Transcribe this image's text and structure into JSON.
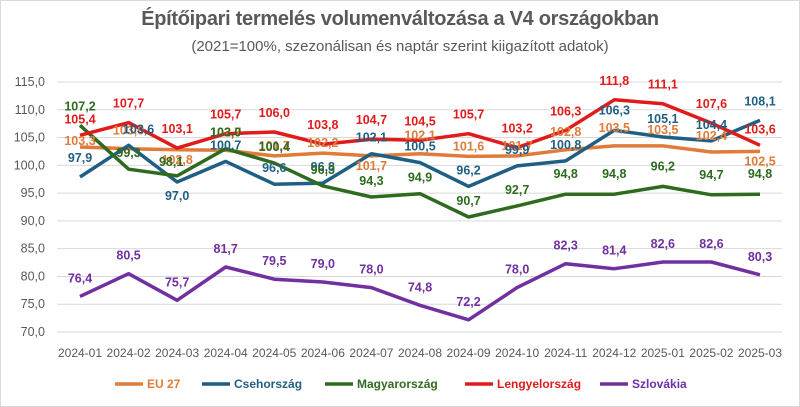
{
  "chart_data": {
    "type": "line",
    "title": "Építőipari termelés volumenváltozása a V4 országokban",
    "subtitle": "(2021=100%, szezonálisan és naptár szerint kiigazított adatok)",
    "xlabel": "",
    "ylabel": "",
    "ylim": [
      70,
      115
    ],
    "yticks": [
      70,
      75,
      80,
      85,
      90,
      95,
      100,
      105,
      110,
      115
    ],
    "ytick_labels": [
      "70,0",
      "75,0",
      "80,0",
      "85,0",
      "90,0",
      "95,0",
      "100,0",
      "105,0",
      "110,0",
      "115,0"
    ],
    "grid": true,
    "legend_position": "bottom",
    "categories": [
      "2024-01",
      "2024-02",
      "2024-03",
      "2024-04",
      "2024-05",
      "2024-06",
      "2024-07",
      "2024-08",
      "2024-09",
      "2024-10",
      "2024-11",
      "2024-12",
      "2025-01",
      "2025-02",
      "2025-03"
    ],
    "series": [
      {
        "name": "EU 27",
        "color": "#e07b39",
        "values": [
          103.3,
          103.0,
          102.8,
          102.7,
          101.7,
          102.2,
          101.7,
          102.1,
          101.6,
          101.7,
          102.8,
          103.5,
          103.5,
          102.4,
          102.5
        ]
      },
      {
        "name": "Csehország",
        "color": "#1f5f84",
        "values": [
          97.9,
          103.6,
          97.0,
          100.7,
          96.6,
          96.8,
          102.1,
          100.5,
          96.2,
          99.9,
          100.8,
          106.3,
          105.1,
          104.4,
          108.1
        ]
      },
      {
        "name": "Magyarország",
        "color": "#2e6b1f",
        "values": [
          107.2,
          99.3,
          98.1,
          103.0,
          100.4,
          96.3,
          94.3,
          94.9,
          90.7,
          92.7,
          94.8,
          94.8,
          96.2,
          94.7,
          94.8
        ]
      },
      {
        "name": "Lengyelország",
        "color": "#e01b1b",
        "values": [
          105.4,
          107.7,
          103.1,
          105.7,
          106.0,
          103.8,
          104.7,
          104.5,
          105.7,
          103.2,
          106.3,
          111.8,
          111.1,
          107.6,
          103.6
        ]
      },
      {
        "name": "Szlovákia",
        "color": "#7030a0",
        "values": [
          76.4,
          80.5,
          75.7,
          81.7,
          79.5,
          79.0,
          78.0,
          74.8,
          72.2,
          78.0,
          82.3,
          81.4,
          82.6,
          82.6,
          80.3
        ]
      }
    ]
  }
}
